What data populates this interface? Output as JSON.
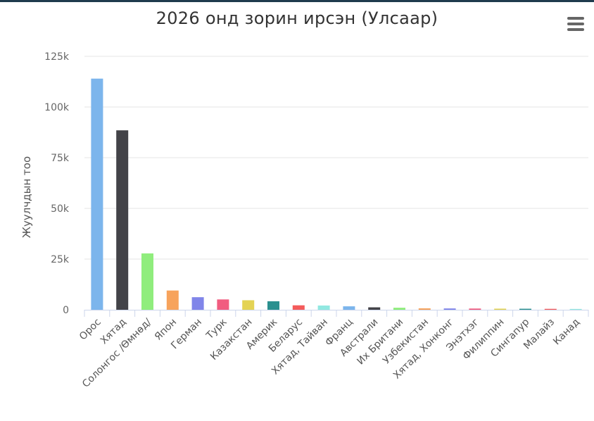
{
  "chart_data": {
    "type": "bar",
    "title": "2026 онд зорин ирсэн (Улсаар)",
    "xlabel": "",
    "ylabel": "Жуулчдын тоо",
    "ylim": [
      0,
      125000
    ],
    "yticks": [
      0,
      25000,
      50000,
      75000,
      100000,
      125000
    ],
    "ytick_labels": [
      "0",
      "25k",
      "50k",
      "75k",
      "100k",
      "125k"
    ],
    "grid": true,
    "categories": [
      "Орос",
      "Хятад",
      "Солонгос /Өмнөд/",
      "Япон",
      "Герман",
      "Турк",
      "Казакстан",
      "Америк",
      "Беларус",
      "Хятад, Тайван",
      "Франц",
      "Австрали",
      "Их Британи",
      "Узбекистан",
      "Хятад, Хонконг",
      "Энэтхэг",
      "Филиппин",
      "Сингапур",
      "Малайз",
      "Канад"
    ],
    "values": [
      114000,
      88500,
      27800,
      9500,
      6200,
      5100,
      4700,
      4200,
      2200,
      2100,
      1700,
      1200,
      1000,
      700,
      650,
      600,
      550,
      500,
      450,
      400
    ],
    "colors": [
      "#7cb5ec",
      "#434348",
      "#90ed7d",
      "#f7a35c",
      "#8085e9",
      "#f15c80",
      "#e4d354",
      "#2b908f",
      "#f45b5b",
      "#91e8e1",
      "#7cb5ec",
      "#434348",
      "#90ed7d",
      "#f7a35c",
      "#8085e9",
      "#f15c80",
      "#e4d354",
      "#2b908f",
      "#f45b5b",
      "#91e8e1"
    ]
  },
  "menu": {
    "icon": "hamburger-menu-icon"
  }
}
